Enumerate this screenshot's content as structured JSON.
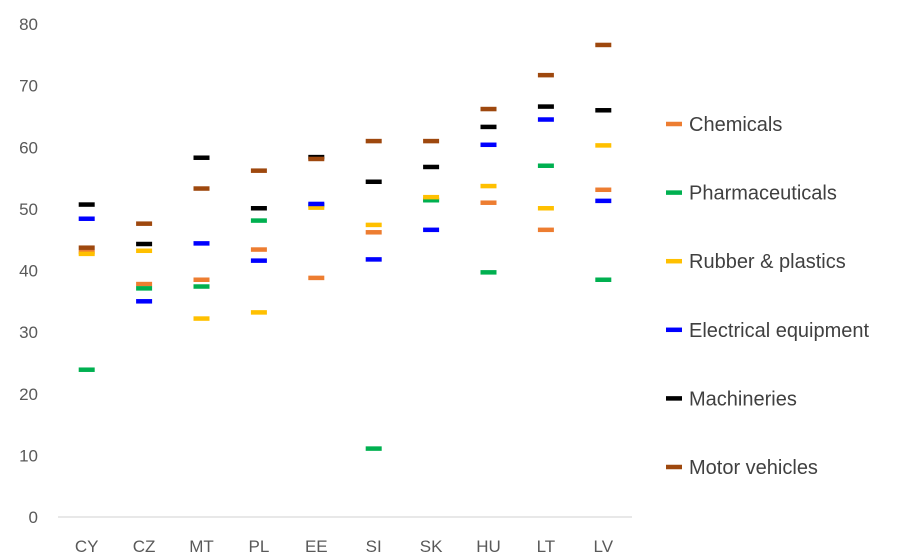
{
  "chart_data": {
    "type": "scatter",
    "title": "",
    "xlabel": "",
    "ylabel": "",
    "categories": [
      "CY",
      "CZ",
      "MT",
      "PL",
      "EE",
      "SI",
      "SK",
      "HU",
      "LT",
      "LV"
    ],
    "ylim": [
      0,
      80
    ],
    "yticks": [
      0,
      10,
      20,
      30,
      40,
      50,
      60,
      70,
      80
    ],
    "grid": false,
    "legend_position": "right",
    "marker": "dash",
    "series": [
      {
        "name": "Chemicals",
        "color": "#ED7D31",
        "values": [
          43.0,
          37.8,
          38.5,
          43.4,
          38.8,
          46.2,
          51.5,
          51.0,
          46.6,
          53.1
        ]
      },
      {
        "name": "Pharmaceuticals",
        "color": "#00B050",
        "values": [
          23.9,
          37.1,
          37.4,
          48.1,
          50.6,
          11.1,
          51.4,
          39.7,
          57.0,
          38.5
        ]
      },
      {
        "name": "Rubber & plastics",
        "color": "#FFC000",
        "values": [
          42.7,
          43.2,
          32.2,
          33.2,
          50.2,
          47.4,
          51.9,
          53.7,
          50.1,
          60.3
        ]
      },
      {
        "name": "Electrical equipment",
        "color": "#0000FF",
        "values": [
          48.4,
          35.0,
          44.4,
          41.6,
          50.8,
          41.8,
          46.6,
          60.4,
          64.5,
          51.3
        ]
      },
      {
        "name": "Machineries",
        "color": "#000000",
        "values": [
          50.7,
          44.3,
          58.3,
          50.1,
          58.4,
          54.4,
          56.8,
          63.3,
          66.6,
          66.0
        ]
      },
      {
        "name": "Motor vehicles",
        "color": "#9E480E",
        "values": [
          43.7,
          47.6,
          53.3,
          56.2,
          58.1,
          61.0,
          61.0,
          66.2,
          71.7,
          76.6
        ]
      }
    ]
  }
}
